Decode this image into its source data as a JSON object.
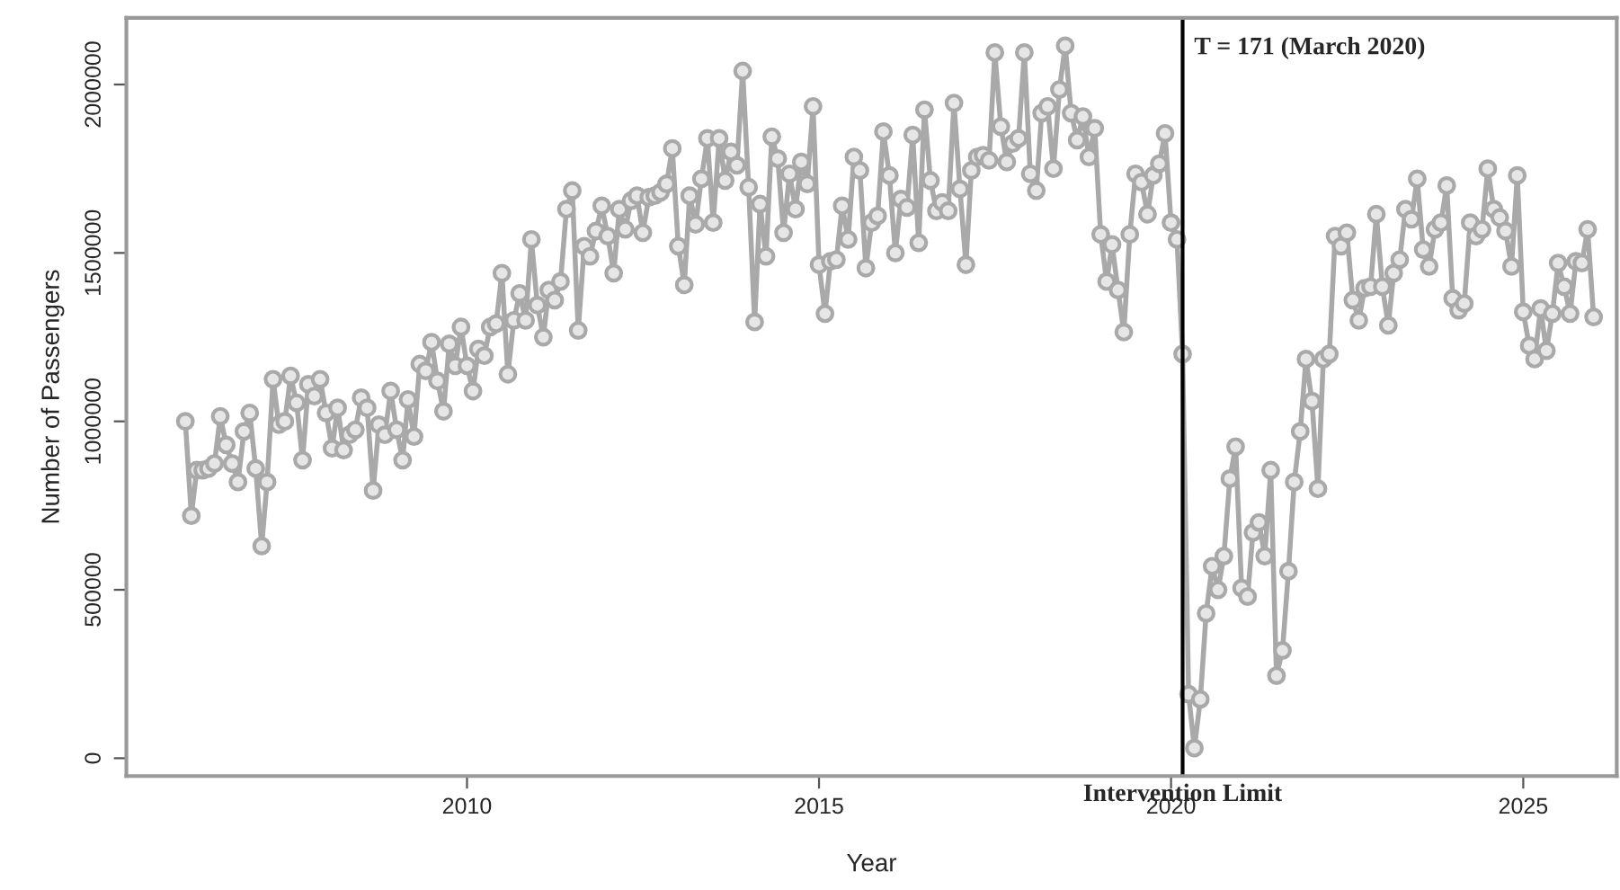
{
  "chart_data": {
    "type": "line",
    "xlabel": "Year",
    "ylabel": "Number of Passengers",
    "x": [
      "2006-01",
      "2006-02",
      "2006-03",
      "2006-04",
      "2006-05",
      "2006-06",
      "2006-07",
      "2006-08",
      "2006-09",
      "2006-10",
      "2006-11",
      "2006-12",
      "2007-01",
      "2007-02",
      "2007-03",
      "2007-04",
      "2007-05",
      "2007-06",
      "2007-07",
      "2007-08",
      "2007-09",
      "2007-10",
      "2007-11",
      "2007-12",
      "2008-01",
      "2008-02",
      "2008-03",
      "2008-04",
      "2008-05",
      "2008-06",
      "2008-07",
      "2008-08",
      "2008-09",
      "2008-10",
      "2008-11",
      "2008-12",
      "2009-01",
      "2009-02",
      "2009-03",
      "2009-04",
      "2009-05",
      "2009-06",
      "2009-07",
      "2009-08",
      "2009-09",
      "2009-10",
      "2009-11",
      "2009-12",
      "2010-01",
      "2010-02",
      "2010-03",
      "2010-04",
      "2010-05",
      "2010-06",
      "2010-07",
      "2010-08",
      "2010-09",
      "2010-10",
      "2010-11",
      "2010-12",
      "2011-01",
      "2011-02",
      "2011-03",
      "2011-04",
      "2011-05",
      "2011-06",
      "2011-07",
      "2011-08",
      "2011-09",
      "2011-10",
      "2011-11",
      "2011-12",
      "2012-01",
      "2012-02",
      "2012-03",
      "2012-04",
      "2012-05",
      "2012-06",
      "2012-07",
      "2012-08",
      "2012-09",
      "2012-10",
      "2012-11",
      "2012-12",
      "2013-01",
      "2013-02",
      "2013-03",
      "2013-04",
      "2013-05",
      "2013-06",
      "2013-07",
      "2013-08",
      "2013-09",
      "2013-10",
      "2013-11",
      "2013-12",
      "2014-01",
      "2014-02",
      "2014-03",
      "2014-04",
      "2014-05",
      "2014-06",
      "2014-07",
      "2014-08",
      "2014-09",
      "2014-10",
      "2014-11",
      "2014-12",
      "2015-01",
      "2015-02",
      "2015-03",
      "2015-04",
      "2015-05",
      "2015-06",
      "2015-07",
      "2015-08",
      "2015-09",
      "2015-10",
      "2015-11",
      "2015-12",
      "2016-01",
      "2016-02",
      "2016-03",
      "2016-04",
      "2016-05",
      "2016-06",
      "2016-07",
      "2016-08",
      "2016-09",
      "2016-10",
      "2016-11",
      "2016-12",
      "2017-01",
      "2017-02",
      "2017-03",
      "2017-04",
      "2017-05",
      "2017-06",
      "2017-07",
      "2017-08",
      "2017-09",
      "2017-10",
      "2017-11",
      "2017-12",
      "2018-01",
      "2018-02",
      "2018-03",
      "2018-04",
      "2018-05",
      "2018-06",
      "2018-07",
      "2018-08",
      "2018-09",
      "2018-10",
      "2018-11",
      "2018-12",
      "2019-01",
      "2019-02",
      "2019-03",
      "2019-04",
      "2019-05",
      "2019-06",
      "2019-07",
      "2019-08",
      "2019-09",
      "2019-10",
      "2019-11",
      "2019-12",
      "2020-01",
      "2020-02",
      "2020-03",
      "2020-04",
      "2020-05",
      "2020-06",
      "2020-07",
      "2020-08",
      "2020-09",
      "2020-10",
      "2020-11",
      "2020-12",
      "2021-01",
      "2021-02",
      "2021-03",
      "2021-04",
      "2021-05",
      "2021-06",
      "2021-07",
      "2021-08",
      "2021-09",
      "2021-10",
      "2021-11",
      "2021-12",
      "2022-01",
      "2022-02",
      "2022-03",
      "2022-04",
      "2022-05",
      "2022-06",
      "2022-07",
      "2022-08",
      "2022-09",
      "2022-10",
      "2022-11",
      "2022-12",
      "2023-01",
      "2023-02",
      "2023-03",
      "2023-04",
      "2023-05",
      "2023-06",
      "2023-07",
      "2023-08",
      "2023-09",
      "2023-10",
      "2023-11",
      "2023-12",
      "2024-01",
      "2024-02",
      "2024-03",
      "2024-04",
      "2024-05",
      "2024-06",
      "2024-07",
      "2024-08",
      "2024-09",
      "2024-10",
      "2024-11",
      "2024-12",
      "2025-01",
      "2025-02",
      "2025-03",
      "2025-04",
      "2025-05",
      "2025-06",
      "2025-07",
      "2025-08",
      "2025-09",
      "2025-10",
      "2025-11",
      "2025-12",
      "2026-01"
    ],
    "series": [
      {
        "color": "#a9a9a9",
        "values": [
          1000000,
          720000,
          855000,
          855000,
          860000,
          875000,
          1015000,
          930000,
          875000,
          820000,
          970000,
          1025000,
          860000,
          630000,
          820000,
          1125000,
          990000,
          1000000,
          1135000,
          1055000,
          885000,
          1110000,
          1075000,
          1125000,
          1025000,
          920000,
          1040000,
          915000,
          960000,
          975000,
          1070000,
          1040000,
          795000,
          990000,
          960000,
          1090000,
          975000,
          885000,
          1065000,
          955000,
          1170000,
          1150000,
          1235000,
          1120000,
          1030000,
          1230000,
          1165000,
          1280000,
          1165000,
          1090000,
          1215000,
          1195000,
          1280000,
          1290000,
          1440000,
          1140000,
          1300000,
          1380000,
          1300000,
          1540000,
          1345000,
          1250000,
          1390000,
          1360000,
          1415000,
          1630000,
          1685000,
          1270000,
          1520000,
          1490000,
          1565000,
          1640000,
          1550000,
          1440000,
          1630000,
          1570000,
          1655000,
          1670000,
          1560000,
          1665000,
          1670000,
          1680000,
          1705000,
          1810000,
          1520000,
          1405000,
          1670000,
          1585000,
          1720000,
          1840000,
          1590000,
          1840000,
          1715000,
          1800000,
          1760000,
          2040000,
          1695000,
          1295000,
          1645000,
          1490000,
          1845000,
          1780000,
          1560000,
          1735000,
          1630000,
          1770000,
          1705000,
          1935000,
          1465000,
          1320000,
          1475000,
          1480000,
          1640000,
          1540000,
          1785000,
          1745000,
          1455000,
          1590000,
          1610000,
          1860000,
          1730000,
          1500000,
          1660000,
          1635000,
          1850000,
          1530000,
          1925000,
          1715000,
          1625000,
          1650000,
          1625000,
          1945000,
          1690000,
          1465000,
          1745000,
          1785000,
          1790000,
          1775000,
          2095000,
          1875000,
          1770000,
          1825000,
          1840000,
          2095000,
          1735000,
          1685000,
          1915000,
          1935000,
          1750000,
          1985000,
          2115000,
          1915000,
          1835000,
          1905000,
          1785000,
          1870000,
          1555000,
          1415000,
          1525000,
          1390000,
          1265000,
          1555000,
          1735000,
          1710000,
          1615000,
          1730000,
          1765000,
          1855000,
          1590000,
          1540000,
          1200000,
          190000,
          30000,
          175000,
          430000,
          570000,
          500000,
          600000,
          830000,
          925000,
          505000,
          480000,
          670000,
          700000,
          600000,
          855000,
          245000,
          320000,
          555000,
          820000,
          970000,
          1185000,
          1060000,
          800000,
          1185000,
          1200000,
          1550000,
          1520000,
          1560000,
          1360000,
          1300000,
          1395000,
          1400000,
          1615000,
          1400000,
          1285000,
          1440000,
          1480000,
          1630000,
          1600000,
          1720000,
          1510000,
          1460000,
          1570000,
          1590000,
          1700000,
          1365000,
          1330000,
          1350000,
          1590000,
          1550000,
          1570000,
          1750000,
          1630000,
          1605000,
          1565000,
          1460000,
          1730000,
          1325000,
          1225000,
          1185000,
          1335000,
          1210000,
          1320000,
          1470000,
          1400000,
          1320000,
          1475000,
          1470000,
          1570000,
          1310000
        ]
      }
    ],
    "xlim": [
      "2005-03",
      "2026-05"
    ],
    "xticks": [
      "2010",
      "2015",
      "2020",
      "2025"
    ],
    "ylim": [
      -53000,
      2198000
    ],
    "yticks": [
      0,
      500000,
      1000000,
      1500000,
      2000000
    ],
    "marker": "circle",
    "line_style": "solid",
    "grid": false,
    "legend": false,
    "ref_lines": [
      {
        "axis": "x",
        "value": "2020-03",
        "label": "T = 171 (March 2020)",
        "color": "#000000"
      }
    ],
    "annotations": [
      "Intervention Limit"
    ]
  }
}
